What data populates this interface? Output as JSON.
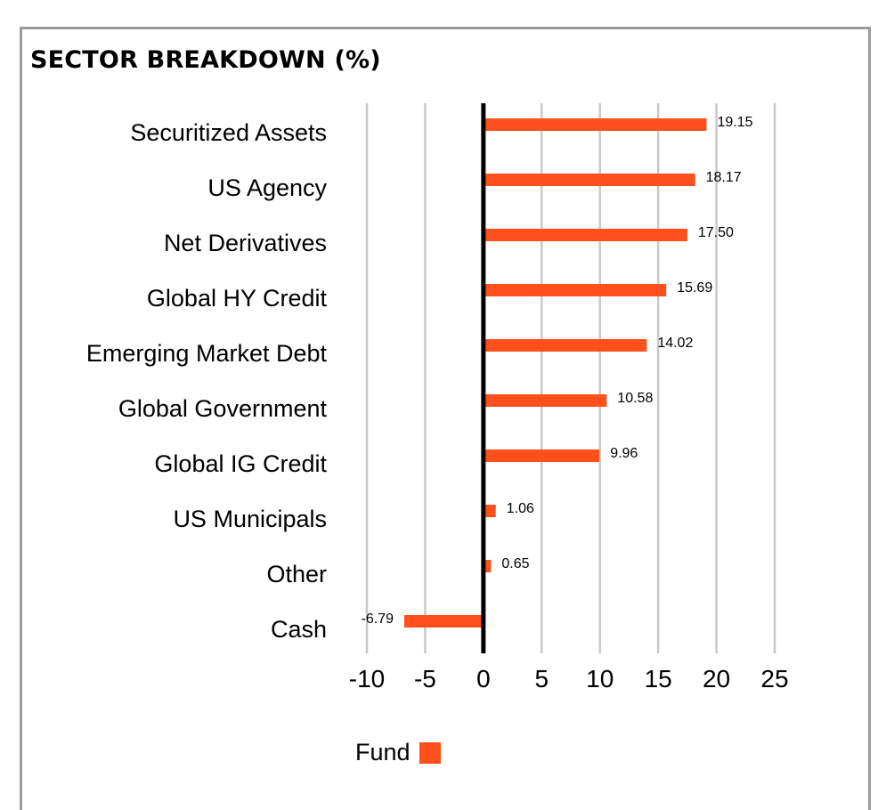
{
  "chart_data": {
    "type": "bar",
    "orientation": "horizontal",
    "title": "SECTOR BREAKDOWN (%)",
    "categories": [
      "Securitized Assets",
      "US Agency",
      "Net Derivatives",
      "Global HY Credit",
      "Emerging Market Debt",
      "Global Government",
      "Global IG Credit",
      "US Municipals",
      "Other",
      "Cash"
    ],
    "series": [
      {
        "name": "Fund",
        "values": [
          19.15,
          18.17,
          17.5,
          15.69,
          14.02,
          10.58,
          9.96,
          1.06,
          0.65,
          -6.79
        ],
        "labels": [
          "19.15",
          "18.17",
          "17.50",
          "15.69",
          "14.02",
          "10.58",
          "9.96",
          "1.06",
          "0.65",
          "-6.79"
        ]
      }
    ],
    "xlim": [
      -10,
      25
    ],
    "xticks": [
      -10,
      -5,
      0,
      5,
      10,
      15,
      20,
      25
    ],
    "grid": true,
    "legend_position": "bottom",
    "colors": {
      "bar": "#ff4f1a",
      "grid": "#c8c8c8",
      "axis": "#000000",
      "frame": "#9b9b9b"
    }
  }
}
